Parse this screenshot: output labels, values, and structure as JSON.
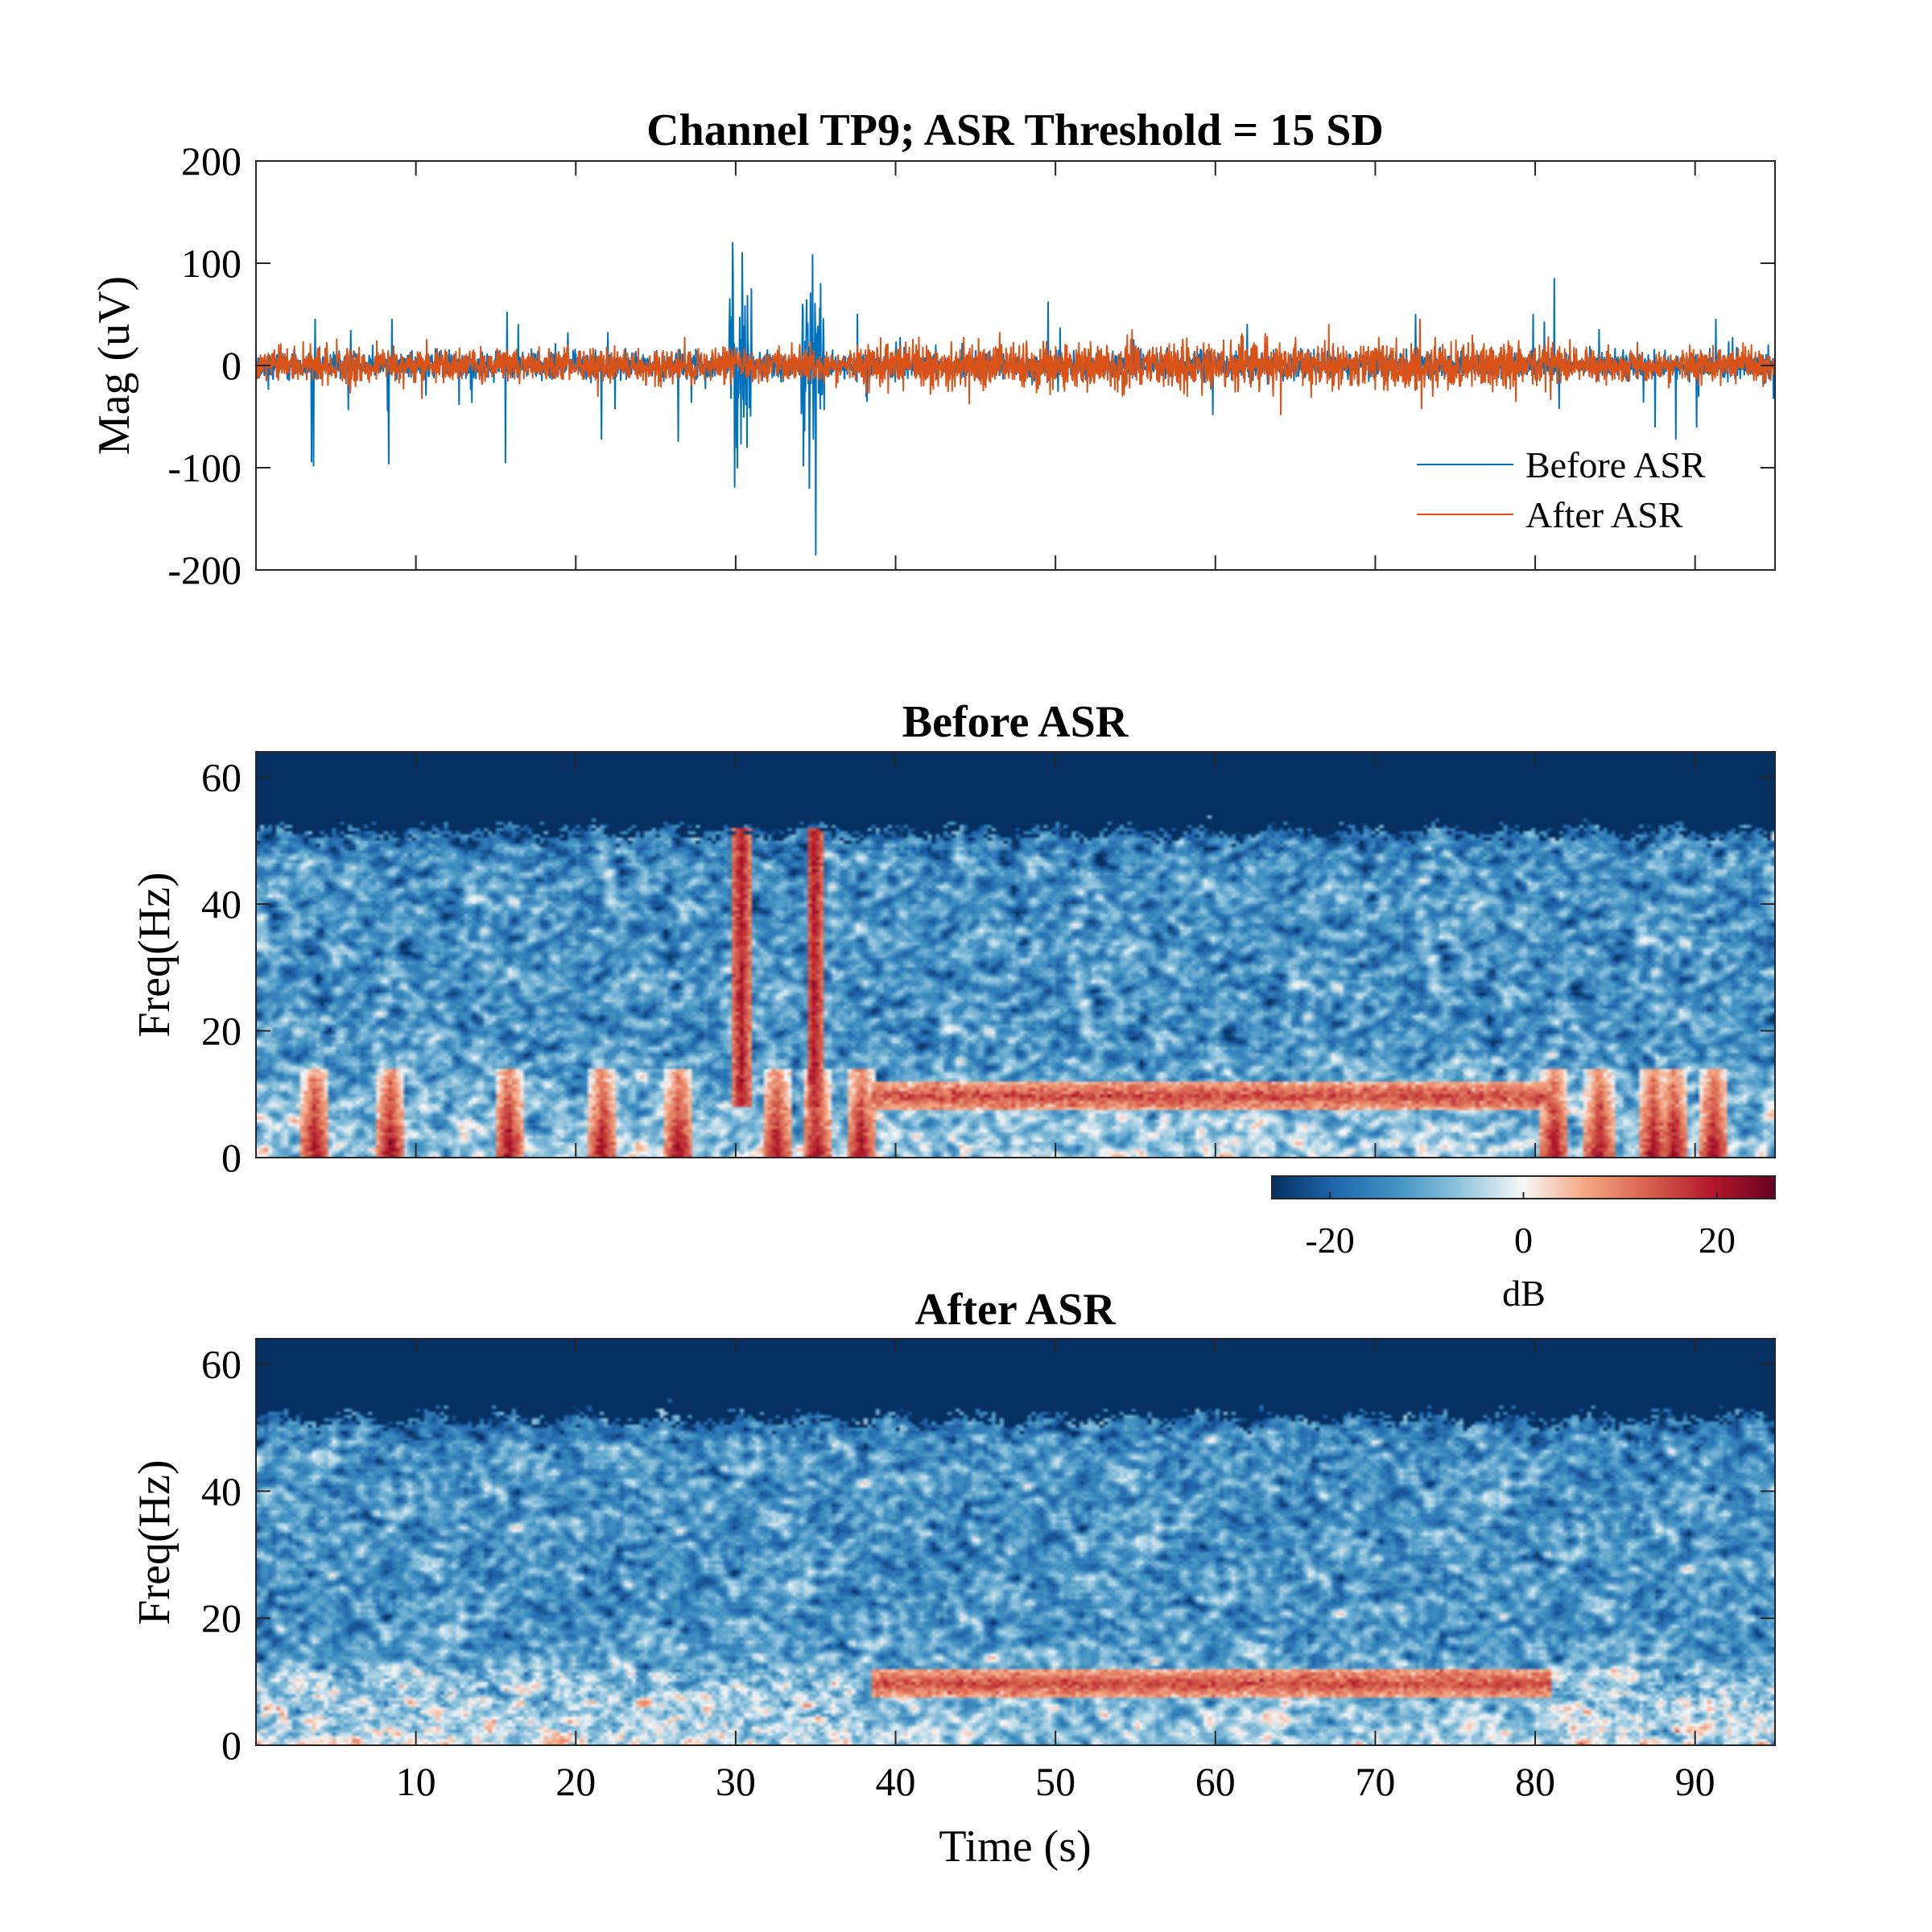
{
  "colors": {
    "before": "#0072BD",
    "after": "#D95319",
    "cmap": [
      "#053061",
      "#2166ac",
      "#4393c3",
      "#92c5de",
      "#f7f7f7",
      "#f4a582",
      "#d6604d",
      "#b2182b",
      "#67001f"
    ]
  },
  "chart_data": [
    {
      "type": "line",
      "title": "Channel TP9; ASR Threshold = 15 SD",
      "xlabel": "",
      "ylabel": "Mag (uV)",
      "xlim": [
        0,
        95
      ],
      "ylim": [
        -200,
        200
      ],
      "x_ticks": [
        10,
        20,
        30,
        40,
        50,
        60,
        70,
        80,
        90
      ],
      "y_ticks": [
        -200,
        -100,
        0,
        100,
        200
      ],
      "y_tick_labels": [
        "-200",
        "-100",
        "0",
        "100",
        "200"
      ],
      "legend_position": "bottom-right",
      "series": [
        {
          "name": "Before ASR",
          "noise_sd": 6,
          "spikes": [
            {
              "t": 3.6,
              "v": -98
            },
            {
              "t": 3.7,
              "v": 45
            },
            {
              "t": 8.3,
              "v": -96
            },
            {
              "t": 8.5,
              "v": 45
            },
            {
              "t": 12.7,
              "v": -38
            },
            {
              "t": 13.5,
              "v": -36
            },
            {
              "t": 15.6,
              "v": -95
            },
            {
              "t": 15.7,
              "v": 52
            },
            {
              "t": 16.4,
              "v": 40
            },
            {
              "t": 21.6,
              "v": -72
            },
            {
              "t": 22.0,
              "v": 32
            },
            {
              "t": 26.4,
              "v": -74
            },
            {
              "t": 29.8,
              "v": 120
            },
            {
              "t": 30.1,
              "v": -100
            },
            {
              "t": 30.4,
              "v": 110
            },
            {
              "t": 30.7,
              "v": -80
            },
            {
              "t": 34.6,
              "v": -120
            },
            {
              "t": 34.8,
              "v": 108
            },
            {
              "t": 35.0,
              "v": -185
            },
            {
              "t": 35.3,
              "v": 80
            },
            {
              "t": 37.6,
              "v": 50
            },
            {
              "t": 38.2,
              "v": -35
            },
            {
              "t": 62.0,
              "v": 40
            },
            {
              "t": 81.2,
              "v": 85
            },
            {
              "t": 81.5,
              "v": -42
            },
            {
              "t": 84.0,
              "v": 35
            },
            {
              "t": 87.5,
              "v": -60
            },
            {
              "t": 88.8,
              "v": -72
            },
            {
              "t": 90.1,
              "v": -60
            },
            {
              "t": 91.3,
              "v": 45
            },
            {
              "t": 94.9,
              "v": -32
            }
          ],
          "bursts": [
            {
              "from": 29.6,
              "to": 31.0,
              "amp": 70
            },
            {
              "from": 34.1,
              "to": 35.6,
              "amp": 70
            }
          ]
        },
        {
          "name": "After ASR",
          "noise_sd": 8,
          "events": [
            {
              "t": 64.1,
              "v": -48
            },
            {
              "t": 67.1,
              "v": 40
            },
            {
              "t": 72.8,
              "v": 45
            },
            {
              "t": 72.9,
              "v": -42
            },
            {
              "t": 78.8,
              "v": -35
            },
            {
              "t": 46.5,
              "v": 32
            },
            {
              "t": 54.8,
              "v": 35
            },
            {
              "t": 93.0,
              "v": 22
            }
          ]
        }
      ]
    },
    {
      "type": "heatmap",
      "title": "Before ASR",
      "xlabel": "",
      "ylabel": "Freq(Hz)",
      "xlim": [
        0,
        95
      ],
      "ylim": [
        0,
        64
      ],
      "x_ticks": [
        10,
        20,
        30,
        40,
        50,
        60,
        70,
        80,
        90
      ],
      "y_ticks": [
        0,
        20,
        40,
        60
      ],
      "noise_cutoff_hz": 50,
      "alpha_band": {
        "from": 38.5,
        "to": 81,
        "freq_hz": 9.5,
        "db": 15
      },
      "artifact_columns": [
        {
          "t": 30.3,
          "to_hz": 52,
          "db": 20
        },
        {
          "t": 34.9,
          "to_hz": 52,
          "db": 20
        }
      ],
      "low_freq_bursts_s": [
        3.6,
        8.3,
        15.7,
        21.6,
        26.4,
        32.5,
        35.0,
        37.8,
        81.3,
        84.1,
        87.5,
        88.8,
        91.3
      ],
      "colorbar": {
        "label": "dB",
        "range": [
          -26,
          26
        ],
        "ticks": [
          -20,
          0,
          20
        ]
      }
    },
    {
      "type": "heatmap",
      "title": "After ASR",
      "xlabel": "Time (s)",
      "ylabel": "Freq(Hz)",
      "xlim": [
        0,
        95
      ],
      "ylim": [
        0,
        64
      ],
      "x_ticks": [
        10,
        20,
        30,
        40,
        50,
        60,
        70,
        80,
        90
      ],
      "x_tick_labels": [
        "10",
        "20",
        "30",
        "40",
        "50",
        "60",
        "70",
        "80",
        "90"
      ],
      "y_ticks": [
        0,
        20,
        40,
        60
      ],
      "noise_cutoff_hz": 50,
      "alpha_band": {
        "from": 38.5,
        "to": 81,
        "freq_hz": 9.5,
        "db": 15
      }
    }
  ]
}
